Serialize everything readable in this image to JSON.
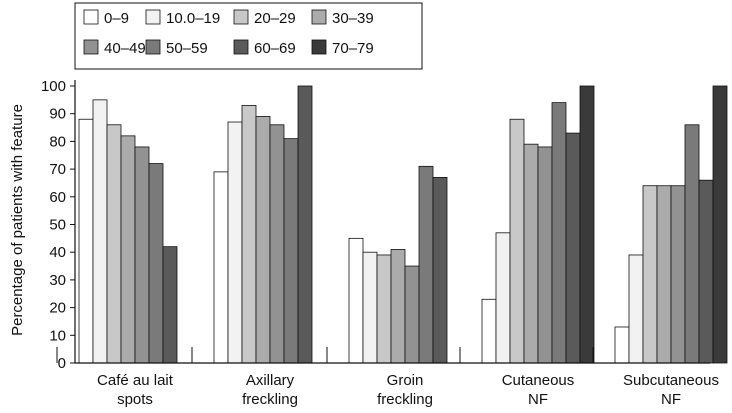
{
  "chart_data": {
    "type": "bar",
    "title": "",
    "xlabel": "",
    "ylabel": "Percentage of patients with feature",
    "ylim": [
      0,
      100
    ],
    "yticks": [
      0,
      10,
      20,
      30,
      40,
      50,
      60,
      70,
      80,
      90,
      100
    ],
    "grid": false,
    "legend_position": "top-left",
    "categories": [
      [
        "Café au lait",
        "spots"
      ],
      [
        "Axillary",
        "freckling"
      ],
      [
        "Groin",
        "freckling"
      ],
      [
        "Cutaneous",
        "NF"
      ],
      [
        "Subcutaneous",
        "NF"
      ]
    ],
    "series": [
      {
        "name": "0–9",
        "color": "#ffffff",
        "values": [
          88,
          69,
          45,
          23,
          13
        ]
      },
      {
        "name": "10.0–19",
        "color": "#f2f2f2",
        "values": [
          95,
          87,
          40,
          47,
          39
        ]
      },
      {
        "name": "20–29",
        "color": "#c8c8c8",
        "values": [
          86,
          93,
          39,
          88,
          64
        ]
      },
      {
        "name": "30–39",
        "color": "#ababab",
        "values": [
          82,
          89,
          41,
          79,
          64
        ]
      },
      {
        "name": "40–49",
        "color": "#929292",
        "values": [
          78,
          86,
          35,
          78,
          64
        ]
      },
      {
        "name": "50–59",
        "color": "#7a7a7a",
        "values": [
          72,
          81,
          71,
          94,
          86
        ]
      },
      {
        "name": "60–69",
        "color": "#5a5a5a",
        "values": [
          42,
          100,
          67,
          83,
          66
        ]
      },
      {
        "name": "70–79",
        "color": "#3a3a3a",
        "values": [
          null,
          null,
          null,
          100,
          100
        ]
      }
    ]
  }
}
